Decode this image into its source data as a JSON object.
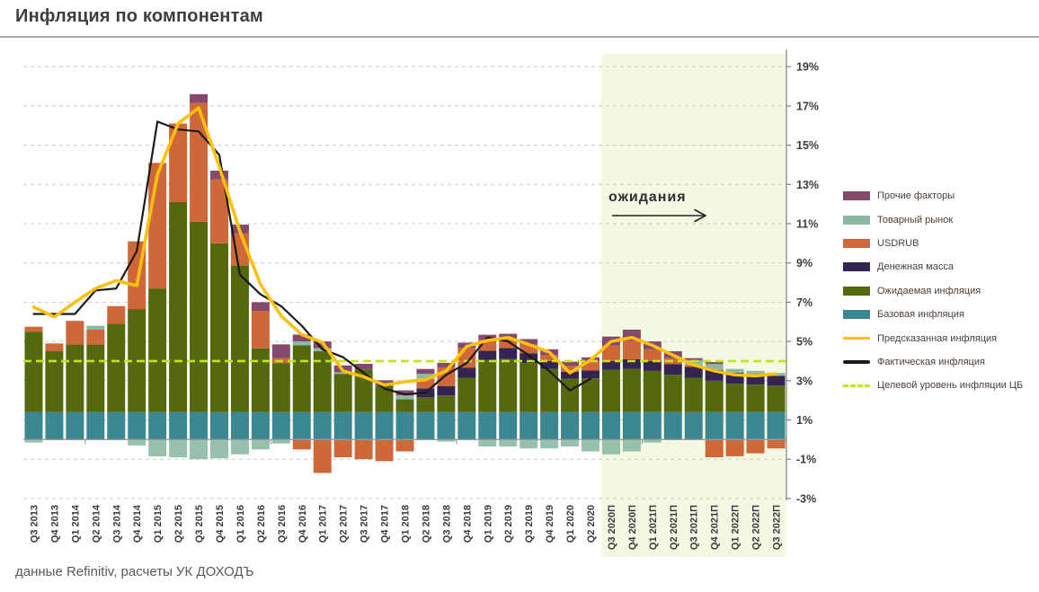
{
  "header": {
    "title": "Инфляция по компонентам"
  },
  "footer": {
    "source": "данные Refinitiv, расчеты УК ДОХОДЪ"
  },
  "legend": [
    {
      "label": "Прочие факторы",
      "type": "bar",
      "color": "#854a6b"
    },
    {
      "label": "Товарный рынок",
      "type": "bar",
      "color": "#8db9a4"
    },
    {
      "label": "USDRUB",
      "type": "bar",
      "color": "#cf6839"
    },
    {
      "label": "Денежная масса",
      "type": "bar",
      "color": "#332451"
    },
    {
      "label": "Ожидаемая инфляция",
      "type": "bar",
      "color": "#54690e"
    },
    {
      "label": "Базовая инфляция",
      "type": "bar",
      "color": "#3a8791"
    },
    {
      "label": "Предсказанная инфляция",
      "type": "line",
      "color": "#fdc00d"
    },
    {
      "label": "Фактическая инфляция",
      "type": "line",
      "color": "#1a1a1a"
    },
    {
      "label": "Целевой уровень инфляции ЦБ",
      "type": "dash",
      "color": "#c2e612"
    }
  ],
  "chart_data": {
    "type": "bar",
    "variant": "stacked-bars-with-lines",
    "title": "Инфляция по компонентам",
    "unit": "%",
    "categories": [
      "Q3 2013",
      "Q4 2013",
      "Q1 2014",
      "Q2 2014",
      "Q3 2014",
      "Q4 2014",
      "Q1 2015",
      "Q2 2015",
      "Q3 2015",
      "Q4 2015",
      "Q1 2016",
      "Q2 2016",
      "Q3 2016",
      "Q4 2016",
      "Q1 2017",
      "Q2 2017",
      "Q3 2017",
      "Q4 2017",
      "Q1 2018",
      "Q2 2018",
      "Q3 2018",
      "Q4 2018",
      "Q1 2019",
      "Q2 2019",
      "Q3 2019",
      "Q4 2019",
      "Q1 2020",
      "Q2 2020",
      "Q3 2020П",
      "Q4 2020П",
      "Q1 2021П",
      "Q2 2021П",
      "Q3 2021П",
      "Q4 2021П",
      "Q1 2022П",
      "Q2 2022П",
      "Q3 2022П"
    ],
    "series": [
      {
        "name": "Базовая инфляция",
        "key": "base",
        "color": "#3a8791",
        "values": [
          1.4,
          1.4,
          1.4,
          1.4,
          1.4,
          1.4,
          1.4,
          1.4,
          1.4,
          1.4,
          1.4,
          1.4,
          1.4,
          1.4,
          1.4,
          1.4,
          1.4,
          1.4,
          1.4,
          1.4,
          1.4,
          1.4,
          1.4,
          1.4,
          1.4,
          1.4,
          1.4,
          1.4,
          1.4,
          1.4,
          1.4,
          1.4,
          1.4,
          1.4,
          1.4,
          1.4,
          1.4
        ]
      },
      {
        "name": "Ожидаемая инфляция",
        "key": "expected",
        "color": "#54690e",
        "values": [
          4.1,
          3.1,
          3.45,
          3.45,
          4.5,
          5.25,
          6.3,
          10.7,
          9.7,
          8.6,
          7.45,
          3.25,
          2.5,
          3.4,
          3.1,
          1.95,
          2.18,
          1.35,
          0.65,
          0.75,
          0.85,
          1.75,
          2.65,
          2.7,
          2.5,
          2.2,
          1.7,
          1.72,
          2.15,
          2.2,
          2.1,
          1.9,
          1.75,
          1.6,
          1.45,
          1.4,
          1.35
        ]
      },
      {
        "name": "Денежная масса",
        "key": "money",
        "color": "#332451",
        "values": [
          0,
          0,
          0,
          0,
          0,
          0,
          0,
          0,
          0,
          0,
          0,
          0,
          0,
          0,
          0,
          0,
          0,
          0,
          0,
          0.45,
          0.48,
          0.52,
          0.48,
          0.56,
          0.5,
          0.4,
          0.35,
          0.4,
          0.45,
          0.5,
          0.5,
          0.55,
          0.55,
          0.55,
          0.55,
          0.55,
          0.5
        ]
      },
      {
        "name": "USDRUB",
        "key": "usdrub",
        "color": "#cf6839",
        "values": [
          0.25,
          0.4,
          1.2,
          0.75,
          0.9,
          3.45,
          6.4,
          4.0,
          6.05,
          3.25,
          1.65,
          1.9,
          0.25,
          -0.5,
          -1.7,
          -0.9,
          -1.0,
          -1.1,
          -0.6,
          0.5,
          0.95,
          1.0,
          0.55,
          0.5,
          0.45,
          0.3,
          0.3,
          0.45,
          0.8,
          0.95,
          0.6,
          0.3,
          0.1,
          -0.9,
          -0.85,
          -0.7,
          -0.45
        ]
      },
      {
        "name": "Товарный рынок",
        "key": "commodity",
        "color": "#8db9a4",
        "values": [
          -0.15,
          0,
          0,
          0.2,
          0,
          -0.3,
          -0.85,
          -0.9,
          -1.0,
          -0.95,
          -0.75,
          -0.5,
          -0.2,
          0.2,
          0.15,
          0.08,
          0,
          0,
          0.2,
          0.25,
          -0.1,
          0,
          -0.35,
          -0.35,
          -0.45,
          -0.45,
          -0.35,
          -0.6,
          -0.75,
          -0.6,
          -0.15,
          0,
          0.25,
          0.3,
          0.2,
          0.15,
          0.15
        ]
      },
      {
        "name": "Прочие факторы",
        "key": "other",
        "color": "#854a6b",
        "values": [
          0,
          0,
          0,
          0,
          0,
          0,
          0,
          0,
          0.45,
          0.45,
          0.45,
          0.45,
          0.7,
          0.35,
          0.35,
          0.35,
          0.28,
          0.27,
          0.26,
          0.25,
          0.23,
          0.27,
          0.26,
          0.23,
          0.27,
          0.3,
          0.22,
          0.22,
          0.45,
          0.55,
          0.4,
          0.35,
          0.1,
          0.1,
          0,
          0,
          0
        ]
      }
    ],
    "lines": [
      {
        "name": "Предсказанная инфляция",
        "color": "#fdc00d",
        "width": 3.6,
        "values": [
          6.75,
          6.25,
          7.0,
          7.7,
          8.1,
          7.85,
          13.5,
          16.1,
          16.9,
          13.9,
          10.6,
          7.9,
          6.3,
          5.35,
          4.95,
          3.5,
          3.2,
          2.78,
          2.95,
          3.05,
          3.5,
          4.75,
          5.05,
          5.2,
          4.85,
          4.45,
          3.4,
          4.05,
          5.0,
          5.2,
          4.8,
          4.3,
          3.8,
          3.5,
          3.3,
          3.25,
          3.35
        ]
      },
      {
        "name": "Фактическая инфляция",
        "color": "#1a1a1a",
        "width": 2.2,
        "values": [
          6.4,
          6.4,
          6.4,
          7.6,
          7.7,
          9.6,
          16.2,
          15.8,
          15.7,
          14.5,
          8.4,
          7.4,
          6.8,
          5.8,
          4.6,
          4.2,
          3.4,
          2.6,
          2.3,
          2.4,
          3.3,
          3.9,
          5.2,
          5.0,
          4.3,
          3.5,
          2.5,
          3.1,
          null,
          null,
          null,
          null,
          null,
          null,
          null,
          null,
          null
        ]
      }
    ],
    "target_line": {
      "name": "Целевой уровень инфляции ЦБ",
      "value": 4,
      "color": "#c2e612"
    },
    "y_axis": {
      "min": -3,
      "max": 19,
      "tick_step": 2,
      "tick_values": [
        19,
        17,
        15,
        13,
        11,
        9,
        7,
        5,
        3,
        1,
        -1,
        -3
      ],
      "tick_labels": [
        "19%",
        "17%",
        "15%",
        "13%",
        "11%",
        "9%",
        "7%",
        "5%",
        "3%",
        "1%",
        "-1%",
        "-3%"
      ]
    },
    "forecast": {
      "start_index": 28,
      "label": "ожидания",
      "band_color": "#f4f9e3"
    },
    "grid": true,
    "legend_position": "right"
  }
}
